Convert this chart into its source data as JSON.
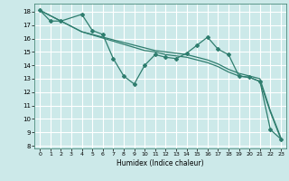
{
  "xlabel": "Humidex (Indice chaleur)",
  "background_color": "#cce9e9",
  "grid_color": "#ffffff",
  "line_color": "#2e7d6e",
  "xlim": [
    -0.5,
    23.5
  ],
  "ylim": [
    7.8,
    18.6
  ],
  "xticks": [
    0,
    1,
    2,
    3,
    4,
    5,
    6,
    7,
    8,
    9,
    10,
    11,
    12,
    13,
    14,
    15,
    16,
    17,
    18,
    19,
    20,
    21,
    22,
    23
  ],
  "yticks": [
    8,
    9,
    10,
    11,
    12,
    13,
    14,
    15,
    16,
    17,
    18
  ],
  "series_marked": {
    "x": [
      0,
      1,
      2,
      4,
      5,
      6,
      7,
      8,
      9,
      10,
      11,
      12,
      13,
      14,
      15,
      16,
      17,
      18,
      19,
      20,
      21,
      22,
      23
    ],
    "y": [
      18.1,
      17.3,
      17.3,
      17.8,
      16.6,
      16.3,
      14.5,
      13.2,
      12.6,
      14.0,
      14.8,
      14.6,
      14.5,
      14.9,
      15.5,
      16.1,
      15.2,
      14.8,
      13.2,
      13.1,
      12.8,
      9.2,
      8.5
    ]
  },
  "series_smooth1": {
    "x": [
      0,
      4,
      10,
      11,
      12,
      13,
      14,
      15,
      16,
      17,
      18,
      19,
      20,
      21,
      22,
      23
    ],
    "y": [
      18.1,
      16.5,
      15.1,
      15.0,
      14.8,
      14.7,
      14.6,
      14.4,
      14.2,
      13.9,
      13.5,
      13.2,
      13.1,
      12.8,
      10.5,
      8.5
    ]
  },
  "series_smooth2": {
    "x": [
      0,
      4,
      10,
      11,
      12,
      13,
      14,
      15,
      16,
      17,
      18,
      19,
      20,
      21,
      22,
      23
    ],
    "y": [
      18.1,
      16.5,
      15.3,
      15.1,
      15.0,
      14.9,
      14.8,
      14.6,
      14.4,
      14.1,
      13.7,
      13.4,
      13.2,
      13.0,
      10.6,
      8.6
    ]
  }
}
